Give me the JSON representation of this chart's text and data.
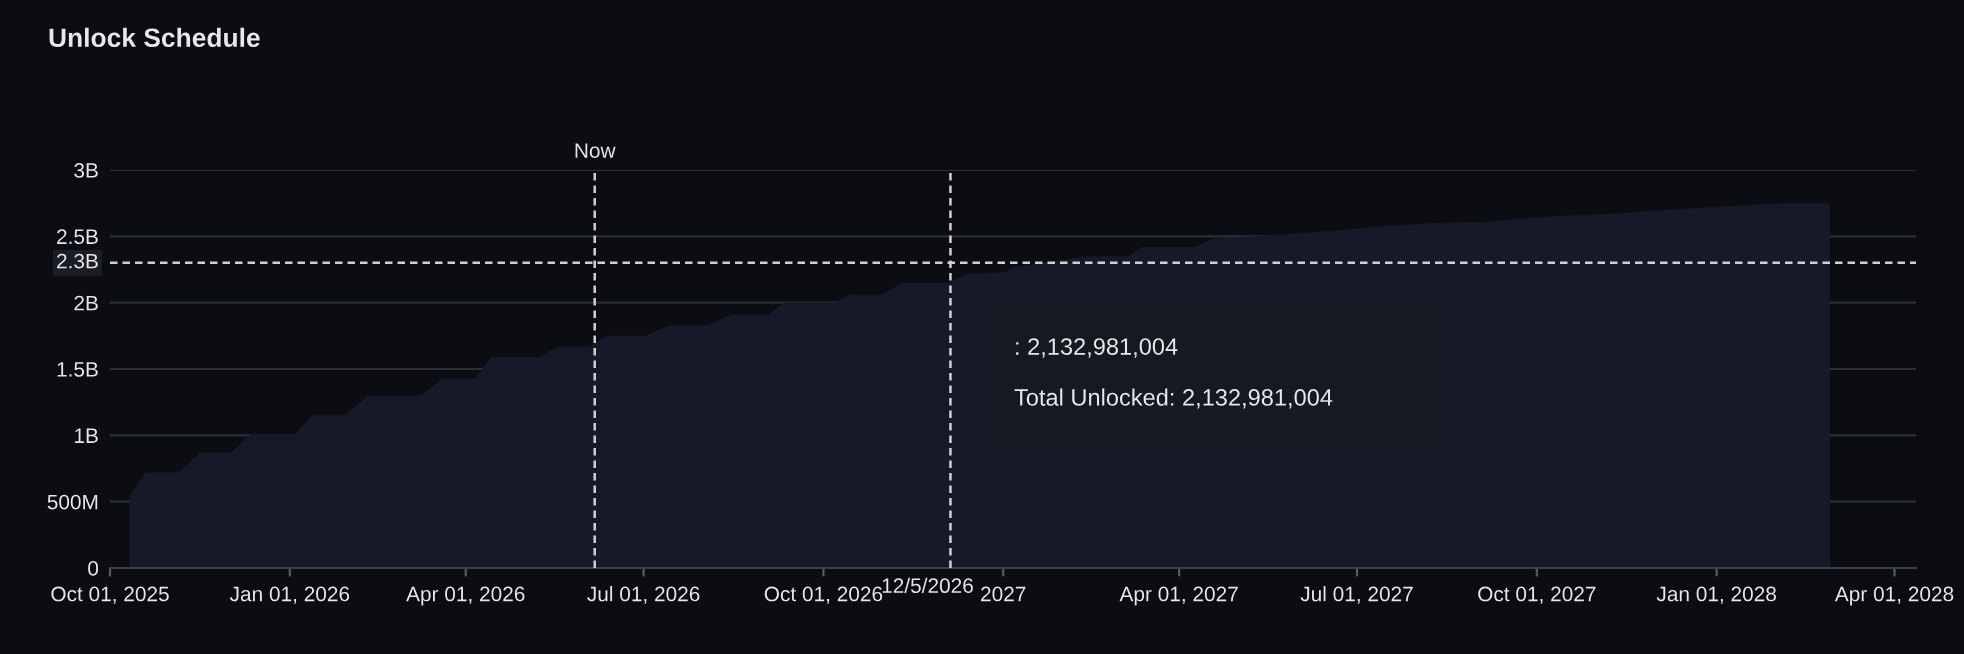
{
  "chart_data": {
    "type": "area",
    "title": "Unlock Schedule",
    "x": [
      "2025-10-11",
      "2025-10-19",
      "2025-11-05",
      "2025-11-16",
      "2025-12-02",
      "2025-12-12",
      "2026-01-04",
      "2026-01-12",
      "2026-01-29",
      "2026-02-10",
      "2026-03-09",
      "2026-03-20",
      "2026-04-06",
      "2026-04-14",
      "2026-05-09",
      "2026-05-18",
      "2026-06-03",
      "2026-06-12",
      "2026-07-02",
      "2026-07-14",
      "2026-08-03",
      "2026-08-15",
      "2026-09-03",
      "2026-09-11",
      "2026-10-07",
      "2026-10-14",
      "2026-10-31",
      "2026-11-10",
      "2026-12-04",
      "2026-12-14",
      "2027-01-02",
      "2027-01-07",
      "2027-02-13",
      "2027-03-06",
      "2027-03-13",
      "2027-04-09",
      "2027-04-18",
      "2027-06-09",
      "2027-07-17",
      "2027-08-10",
      "2027-09-06",
      "2027-10-06",
      "2027-11-08",
      "2027-12-07",
      "2028-01-10",
      "2028-02-06",
      "2028-02-28"
    ],
    "series": [
      {
        "color": "#161a28",
        "values": [
          540000000,
          720000000,
          720000000,
          870000000,
          870000000,
          1010000000,
          1010000000,
          1150000000,
          1150000000,
          1300000000,
          1300000000,
          1430000000,
          1430000000,
          1590000000,
          1590000000,
          1670000000,
          1670000000,
          1750000000,
          1750000000,
          1830000000,
          1830000000,
          1910000000,
          1910000000,
          2000000000,
          2000000000,
          2060000000,
          2060000000,
          2150000000,
          2150000000,
          2220000000,
          2230000000,
          2270000000,
          2350000000,
          2350000000,
          2420000000,
          2420000000,
          2480000000,
          2530000000,
          2580000000,
          2600000000,
          2610000000,
          2650000000,
          2670000000,
          2700000000,
          2730000000,
          2750000000,
          2750000000
        ]
      }
    ],
    "xlim": [
      "2025-10-01",
      "2028-04-12"
    ],
    "xticks": [
      {
        "value": "2025-10-01",
        "label": "Oct 01, 2025"
      },
      {
        "value": "2026-01-01",
        "label": "Jan 01, 2026"
      },
      {
        "value": "2026-04-01",
        "label": "Apr 01, 2026"
      },
      {
        "value": "2026-07-01",
        "label": "Jul 01, 2026"
      },
      {
        "value": "2026-10-01",
        "label": "Oct 01, 2026"
      },
      {
        "value": "2027-01-01",
        "label": "2027"
      },
      {
        "value": "2027-04-01",
        "label": "Apr 01, 2027"
      },
      {
        "value": "2027-07-01",
        "label": "Jul 01, 2027"
      },
      {
        "value": "2027-10-01",
        "label": "Oct 01, 2027"
      },
      {
        "value": "2028-01-01",
        "label": "Jan 01, 2028"
      },
      {
        "value": "2028-04-01",
        "label": "Apr 01, 2028"
      }
    ],
    "ylim": [
      0,
      3000000000
    ],
    "yticks": [
      0,
      {
        "value": 500000000,
        "label": "500M"
      },
      {
        "value": 1000000000,
        "label": "1B"
      },
      {
        "value": 1500000000,
        "label": "1.5B"
      },
      {
        "value": 2000000000,
        "label": "2B"
      },
      {
        "value": 2500000000,
        "label": "2.5B"
      },
      {
        "value": 3000000000,
        "label": "3B"
      }
    ],
    "grid": "y",
    "ref_lines": [
      {
        "axis": "x",
        "value": "2026-06-06",
        "label": "Now",
        "color": "#d0d0d0",
        "line_style": "dashed"
      },
      {
        "axis": "x",
        "value": "2026-12-05",
        "label": "12/5/2026",
        "color": "#d0d0d0",
        "line_style": "dashed"
      },
      {
        "axis": "y",
        "value": 2300000000,
        "label": "2.3B",
        "color": "#d0d0d0",
        "line_style": "dashed"
      }
    ],
    "annotations": [
      ": 2,132,981,004",
      "Total Unlocked: 2,132,981,004"
    ]
  }
}
